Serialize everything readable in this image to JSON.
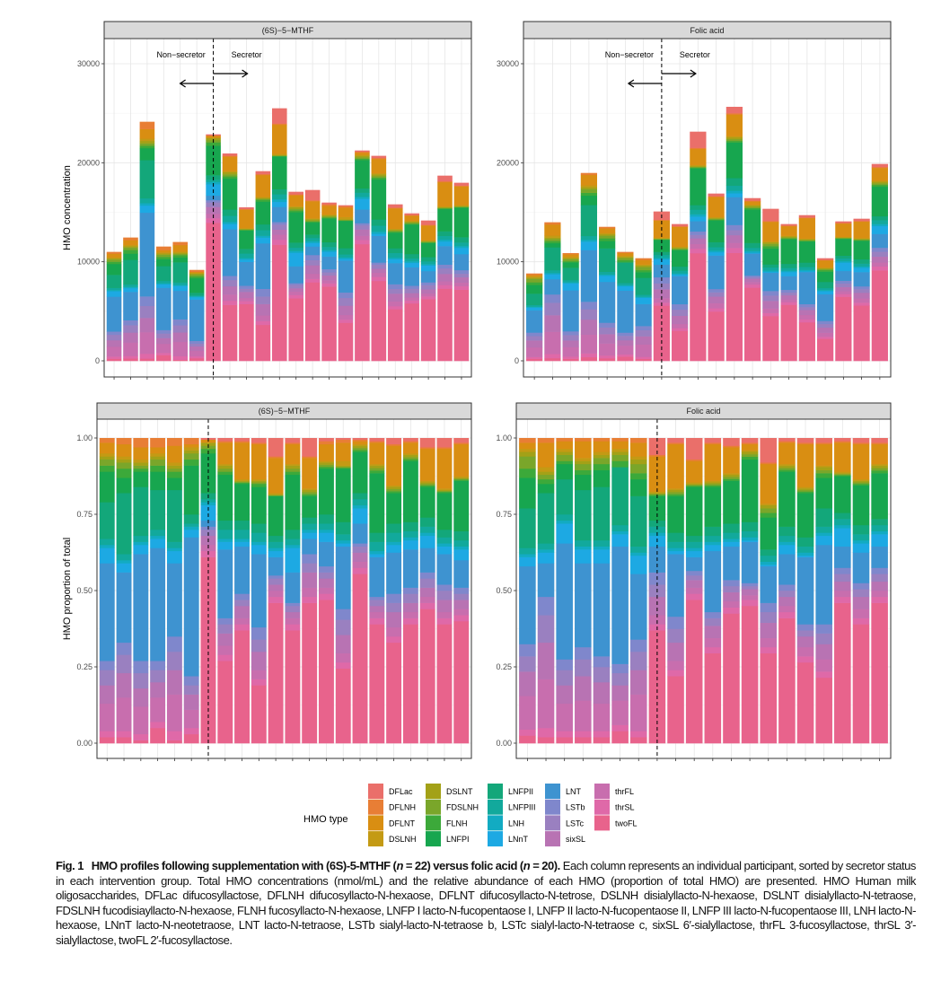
{
  "colors": {
    "DFLac": "#EA6F6A",
    "DFLNH": "#E87E35",
    "DFLNT": "#D98E12",
    "DSLNH": "#C49A14",
    "DSLNT": "#A3A117",
    "FDSLNH": "#7AA62A",
    "FLNH": "#3CA93A",
    "LNFPI": "#17A64F",
    "LNFPII": "#13A77A",
    "LNFPIII": "#12A99C",
    "LNH": "#12ABC2",
    "LNnT": "#1DA9E3",
    "LNT": "#3E93D0",
    "LSTb": "#7F87CC",
    "LSTc": "#9A80C0",
    "sixSL": "#B873B3",
    "thrFL": "#C86EAE",
    "thrSL": "#DF69A8",
    "twoFL": "#E8638C"
  },
  "legend": {
    "title": "HMO type",
    "items": [
      "DFLac",
      "DFLNH",
      "DFLNT",
      "DSLNH",
      "DSLNT",
      "FDSLNH",
      "FLNH",
      "LNFPI",
      "LNFPII",
      "LNFPIII",
      "LNH",
      "LNnT",
      "LNT",
      "LSTb",
      "LSTc",
      "sixSL",
      "thrFL",
      "thrSL",
      "twoFL"
    ]
  },
  "chart_data": [
    {
      "panel": "top-left",
      "type": "bar",
      "stacked": true,
      "facet": "(6S)−5−MTHF",
      "ylabel": "HMO concentration",
      "xlabel": "",
      "ylim": [
        0,
        30000
      ],
      "yticks": [
        "0",
        "10000",
        "20000",
        "30000"
      ],
      "ytick_values": [
        0,
        10000,
        20000,
        30000
      ],
      "grid": true,
      "annotations": {
        "left": "Non−secretor",
        "right": "Secretor"
      },
      "groups": [
        {
          "label": "Non−secretor",
          "count": 6
        },
        {
          "label": "Secretor",
          "count": 16
        }
      ],
      "totals": [
        11000,
        12450,
        24140,
        11540,
        12000,
        9180,
        22870,
        20940,
        15500,
        19150,
        25500,
        17070,
        17250,
        15980,
        15710,
        21240,
        20700,
        15800,
        14890,
        14170,
        18700,
        17980
      ]
    },
    {
      "panel": "top-right",
      "type": "bar",
      "stacked": true,
      "facet": "Folic acid",
      "ylabel": "",
      "xlabel": "",
      "ylim": [
        0,
        30000
      ],
      "yticks": [
        "0",
        "10000",
        "20000",
        "30000"
      ],
      "ytick_values": [
        0,
        10000,
        20000,
        30000
      ],
      "grid": true,
      "annotations": {
        "left": "Non−secretor",
        "right": "Secretor"
      },
      "groups": [
        {
          "label": "Non−secretor",
          "count": 7
        },
        {
          "label": "Secretor",
          "count": 13
        }
      ],
      "totals": [
        8820,
        13990,
        10880,
        18970,
        13530,
        11000,
        10360,
        15080,
        13810,
        23140,
        16890,
        25650,
        16430,
        15350,
        13810,
        14710,
        10360,
        14080,
        14350,
        19880
      ]
    },
    {
      "panel": "bottom-left",
      "type": "bar",
      "stacked": true,
      "facet": "(6S)−5−MTHF",
      "ylabel": "HMO proportion of total",
      "xlabel": "",
      "ylim": [
        0,
        1
      ],
      "yticks": [
        "0.00",
        "0.25",
        "0.50",
        "0.75",
        "1.00"
      ],
      "ytick_values": [
        0,
        0.25,
        0.5,
        0.75,
        1
      ],
      "grid": true,
      "groups": [
        {
          "label": "Non−secretor",
          "count": 6
        },
        {
          "label": "Secretor",
          "count": 16
        }
      ],
      "series_order": [
        "DFLac",
        "DFLNH",
        "DFLNT",
        "DSLNH",
        "DSLNT",
        "FDSLNH",
        "FLNH",
        "LNFPI",
        "LNFPII",
        "LNFPIII",
        "LNH",
        "LNnT",
        "LNT",
        "LSTb",
        "LSTc",
        "sixSL",
        "thrFL",
        "thrSL",
        "twoFL"
      ],
      "proportions": [
        [
          0,
          0.015,
          0.035,
          0.01,
          0.01,
          0.02,
          0.02,
          0.1,
          0.12,
          0.02,
          0.01,
          0.05,
          0.32,
          0.03,
          0.05,
          0.06,
          0.09,
          0.02,
          0.02
        ],
        [
          0,
          0.02,
          0.04,
          0.01,
          0.01,
          0.02,
          0.03,
          0.05,
          0.2,
          0.02,
          0.01,
          0.03,
          0.23,
          0.04,
          0.06,
          0.08,
          0.11,
          0.02,
          0.02
        ],
        [
          0,
          0.03,
          0.04,
          0.01,
          0.01,
          0.01,
          0.01,
          0.05,
          0.16,
          0.02,
          0.01,
          0.03,
          0.35,
          0.04,
          0.05,
          0.06,
          0.09,
          0.02,
          0.01
        ],
        [
          0,
          0.03,
          0.02,
          0.01,
          0.01,
          0.02,
          0.02,
          0.06,
          0.13,
          0.02,
          0.01,
          0.03,
          0.37,
          0.03,
          0.04,
          0.05,
          0.08,
          0.02,
          0.05
        ],
        [
          0,
          0.025,
          0.055,
          0.01,
          0.01,
          0.01,
          0.02,
          0.04,
          0.17,
          0.02,
          0.01,
          0.04,
          0.24,
          0.05,
          0.06,
          0.08,
          0.12,
          0.03,
          0.01
        ],
        [
          0,
          0.02,
          0.01,
          0.01,
          0.01,
          0.02,
          0.02,
          0.16,
          0.03,
          0.01,
          0.01,
          0.025,
          0.455,
          0.03,
          0.03,
          0.05,
          0.06,
          0.02,
          0.03
        ],
        [
          0.005,
          0,
          0.01,
          0,
          0.01,
          0.01,
          0.015,
          0.13,
          0.02,
          0.01,
          0.01,
          0.05,
          0.02,
          0.01,
          0.02,
          0.03,
          0.02,
          0.02,
          0.61
        ],
        [
          0.01,
          0.005,
          0.07,
          0.005,
          0.01,
          0.01,
          0.01,
          0.15,
          0.03,
          0.03,
          0.01,
          0.025,
          0.225,
          0.02,
          0.03,
          0.04,
          0.03,
          0.02,
          0.27
        ],
        [
          0.01,
          0.005,
          0.12,
          0.005,
          0.003,
          0.003,
          0.004,
          0.12,
          0.03,
          0.03,
          0.01,
          0.015,
          0.155,
          0.02,
          0.02,
          0.04,
          0.02,
          0.02,
          0.37
        ],
        [
          0.015,
          0.005,
          0.115,
          0.005,
          0.005,
          0.005,
          0.01,
          0.12,
          0.03,
          0.03,
          0.01,
          0.03,
          0.24,
          0.04,
          0.04,
          0.06,
          0.03,
          0.02,
          0.19
        ],
        [
          0.06,
          0.005,
          0.115,
          0.005,
          0.002,
          0.002,
          0.001,
          0.13,
          0.02,
          0.02,
          0.01,
          0.02,
          0.06,
          0.01,
          0.02,
          0.02,
          0.02,
          0.02,
          0.46
        ],
        [
          0.015,
          0.005,
          0.065,
          0.005,
          0.01,
          0.01,
          0.01,
          0.18,
          0.03,
          0.02,
          0.01,
          0.08,
          0.1,
          0.01,
          0.02,
          0.02,
          0.02,
          0.02,
          0.37
        ],
        [
          0.06,
          0.005,
          0.1,
          0.005,
          0.007,
          0.007,
          0.006,
          0.07,
          0.02,
          0.02,
          0.01,
          0.02,
          0.05,
          0.03,
          0.03,
          0.05,
          0.03,
          0.02,
          0.46
        ],
        [
          0.01,
          0.01,
          0.055,
          0.005,
          0.007,
          0.007,
          0.006,
          0.15,
          0.03,
          0.02,
          0.01,
          0.03,
          0.08,
          0.02,
          0.02,
          0.03,
          0.02,
          0.02,
          0.47
        ],
        [
          0.005,
          0.01,
          0.06,
          0.015,
          0.004,
          0.003,
          0.003,
          0.175,
          0.04,
          0.02,
          0.01,
          0.01,
          0.205,
          0.035,
          0.05,
          0.06,
          0.03,
          0.02,
          0.245
        ],
        [
          0.005,
          0.005,
          0.01,
          0.005,
          0.007,
          0.007,
          0.006,
          0.135,
          0.02,
          0.02,
          0.01,
          0.05,
          0.065,
          0.01,
          0.02,
          0.03,
          0.02,
          0.02,
          0.555
        ],
        [
          0.01,
          0.005,
          0.07,
          0.005,
          0.008,
          0.008,
          0.009,
          0.195,
          0.03,
          0.03,
          0.01,
          0.01,
          0.13,
          0.01,
          0.02,
          0.02,
          0.02,
          0.02,
          0.39
        ],
        [
          0.02,
          0.005,
          0.13,
          0.005,
          0.007,
          0.007,
          0.006,
          0.1,
          0.03,
          0.03,
          0.01,
          0.025,
          0.135,
          0.03,
          0.03,
          0.05,
          0.03,
          0.02,
          0.33
        ],
        [
          0.01,
          0.005,
          0.035,
          0.005,
          0.007,
          0.007,
          0.006,
          0.2,
          0.03,
          0.02,
          0.01,
          0.03,
          0.125,
          0.02,
          0.03,
          0.03,
          0.02,
          0.02,
          0.39
        ],
        [
          0.03,
          0.005,
          0.105,
          0.005,
          0.005,
          0.005,
          0.005,
          0.1,
          0.03,
          0.02,
          0.01,
          0.04,
          0.08,
          0.02,
          0.03,
          0.03,
          0.02,
          0.02,
          0.44
        ],
        [
          0.03,
          0.005,
          0.13,
          0.005,
          0.003,
          0.003,
          0.004,
          0.12,
          0.025,
          0.02,
          0.01,
          0.025,
          0.1,
          0.02,
          0.03,
          0.04,
          0.02,
          0.02,
          0.39
        ],
        [
          0.015,
          0.005,
          0.105,
          0.005,
          0.003,
          0.003,
          0.004,
          0.165,
          0.03,
          0.02,
          0.01,
          0.035,
          0.09,
          0.02,
          0.02,
          0.03,
          0.02,
          0.02,
          0.4
        ]
      ]
    },
    {
      "panel": "bottom-right",
      "type": "bar",
      "stacked": true,
      "facet": "Folic acid",
      "ylabel": "",
      "xlabel": "",
      "ylim": [
        0,
        1
      ],
      "yticks": [
        "0.00",
        "0.25",
        "0.50",
        "0.75",
        "1.00"
      ],
      "ytick_values": [
        0,
        0.25,
        0.5,
        0.75,
        1
      ],
      "grid": true,
      "groups": [
        {
          "label": "Non−secretor",
          "count": 7
        },
        {
          "label": "Secretor",
          "count": 13
        }
      ],
      "series_order": [
        "DFLac",
        "DFLNH",
        "DFLNT",
        "DSLNH",
        "DSLNT",
        "FDSLNH",
        "FLNH",
        "LNFPI",
        "LNFPII",
        "LNFPIII",
        "LNH",
        "LNnT",
        "LNT",
        "LSTb",
        "LSTc",
        "sixSL",
        "thrFL",
        "thrSL",
        "twoFL"
      ],
      "proportions": [
        [
          0,
          0.015,
          0.02,
          0.01,
          0.015,
          0.04,
          0.03,
          0.1,
          0.13,
          0.02,
          0.01,
          0.03,
          0.255,
          0.04,
          0.05,
          0.08,
          0.11,
          0.02,
          0.025
        ],
        [
          0,
          0.015,
          0.08,
          0.015,
          0.01,
          0.015,
          0.015,
          0.03,
          0.165,
          0.02,
          0.01,
          0.035,
          0.11,
          0.06,
          0.09,
          0.12,
          0.16,
          0.03,
          0.02
        ],
        [
          0,
          0.01,
          0.025,
          0.01,
          0.01,
          0.02,
          0.01,
          0.05,
          0.115,
          0.02,
          0.01,
          0.065,
          0.38,
          0.035,
          0.05,
          0.06,
          0.09,
          0.02,
          0.02
        ],
        [
          0,
          0.01,
          0.055,
          0.01,
          0.01,
          0.02,
          0.015,
          0.05,
          0.165,
          0.02,
          0.01,
          0.045,
          0.275,
          0.04,
          0.055,
          0.08,
          0.1,
          0.02,
          0.02
        ],
        [
          0,
          0.01,
          0.035,
          0.01,
          0.01,
          0.02,
          0.02,
          0.055,
          0.175,
          0.02,
          0.01,
          0.045,
          0.305,
          0.035,
          0.05,
          0.07,
          0.09,
          0.02,
          0.02
        ],
        [
          0,
          0.01,
          0.025,
          0.01,
          0.01,
          0.02,
          0.02,
          0,
          0.19,
          0.02,
          0.01,
          0.04,
          0.385,
          0.03,
          0.04,
          0.05,
          0.08,
          0.02,
          0.04
        ],
        [
          0,
          0.015,
          0.045,
          0.01,
          0.015,
          0.03,
          0.02,
          0.055,
          0.165,
          0.02,
          0.01,
          0.06,
          0.215,
          0.04,
          0.06,
          0.08,
          0.12,
          0.02,
          0.02
        ],
        [
          0.055,
          0.005,
          0.115,
          0.005,
          0.003,
          0.003,
          0.004,
          0.08,
          0.02,
          0.02,
          0.01,
          0.035,
          0.085,
          0.04,
          0.04,
          0.06,
          0.03,
          0.02,
          0.37
        ],
        [
          0.015,
          0.005,
          0.145,
          0.005,
          0.007,
          0.007,
          0.006,
          0.12,
          0.03,
          0.02,
          0.01,
          0.01,
          0.205,
          0.04,
          0.045,
          0.06,
          0.03,
          0.02,
          0.22
        ],
        [
          0.07,
          0.005,
          0.07,
          0.005,
          0.003,
          0.003,
          0.004,
          0.16,
          0.02,
          0.02,
          0.01,
          0.02,
          0.045,
          0.015,
          0.015,
          0.025,
          0.02,
          0.02,
          0.47
        ],
        [
          0.015,
          0.005,
          0.12,
          0.005,
          0.005,
          0.005,
          0.005,
          0.13,
          0.03,
          0.02,
          0.01,
          0.02,
          0.2,
          0.02,
          0.025,
          0.04,
          0.03,
          0.02,
          0.295
        ],
        [
          0.025,
          0.005,
          0.085,
          0.005,
          0.007,
          0.007,
          0.006,
          0.14,
          0.03,
          0.02,
          0.01,
          0.015,
          0.11,
          0.02,
          0.02,
          0.03,
          0.02,
          0.02,
          0.425
        ],
        [
          0.015,
          0.005,
          0.02,
          0.005,
          0.008,
          0.008,
          0.009,
          0.205,
          0.03,
          0.02,
          0.01,
          0.005,
          0.135,
          0.01,
          0.01,
          0.02,
          0.015,
          0.02,
          0.45
        ],
        [
          0.08,
          0.005,
          0.13,
          0.005,
          0.01,
          0.015,
          0.015,
          0.105,
          0.02,
          0.02,
          0.01,
          0.005,
          0.12,
          0.03,
          0.035,
          0.05,
          0.03,
          0.02,
          0.295
        ],
        [
          0.01,
          0.005,
          0.07,
          0.005,
          0.007,
          0.007,
          0.006,
          0.18,
          0.03,
          0.02,
          0.01,
          0.03,
          0.1,
          0.02,
          0.02,
          0.03,
          0.02,
          0.02,
          0.41
        ],
        [
          0.015,
          0.005,
          0.14,
          0.005,
          0.005,
          0.005,
          0.005,
          0.145,
          0.03,
          0.02,
          0.01,
          0.005,
          0.22,
          0.02,
          0.02,
          0.035,
          0.03,
          0.02,
          0.265
        ],
        [
          0.015,
          0.005,
          0.07,
          0.005,
          0.01,
          0.01,
          0.015,
          0.1,
          0.06,
          0.02,
          0.01,
          0.03,
          0.26,
          0.03,
          0.035,
          0.05,
          0.04,
          0.02,
          0.215
        ],
        [
          0.01,
          0.005,
          0.095,
          0.005,
          0.003,
          0.003,
          0.004,
          0.12,
          0.02,
          0.02,
          0.01,
          0.06,
          0.07,
          0.02,
          0.025,
          0.03,
          0.02,
          0.02,
          0.46
        ],
        [
          0.015,
          0.005,
          0.115,
          0.005,
          0.005,
          0.005,
          0.005,
          0.13,
          0.03,
          0.02,
          0.01,
          0.03,
          0.1,
          0.02,
          0.025,
          0.04,
          0.03,
          0.02,
          0.39
        ],
        [
          0.015,
          0.005,
          0.065,
          0.005,
          0.008,
          0.008,
          0.009,
          0.15,
          0.02,
          0.02,
          0.01,
          0.04,
          0.07,
          0.02,
          0.025,
          0.03,
          0.02,
          0.02,
          0.46
        ]
      ]
    }
  ],
  "caption": {
    "label": "Fig. 1",
    "title_a": "HMO profiles following supplementation with (6S)-5-MTHF (",
    "n_symbol": "n",
    "title_b": " = 22) versus folic acid (",
    "title_c": " = 20).",
    "body": "Each column represents an individual participant, sorted by secretor status in each intervention group. Total HMO concentrations (nmol/mL) and the relative abundance of each HMO (proportion of total HMO) are presented. HMO Human milk oligosaccharides, DFLac difucosyllactose, DFLNH difucosyllacto-N-hexaose, DFLNT difucosyllacto-N-tetrose, DSLNH disialyllacto-N-hexaose, DSLNT disialyllacto-N-tetraose, FDSLNH fucodisiayllacto-N-hexaose, FLNH fucosyllacto-N-hexaose, LNFP I lacto-N-fucopentaose I, LNFP II lacto-N-fucopentaose II, LNFP III lacto-N-fucopentaose III, LNH lacto-N-hexaose, LNnT lacto-N-neotetraose, LNT lacto-N-tetraose, LSTb sialyl-lacto-N-tetraose b, LSTc sialyl-lacto-N-tetraose c, sixSL 6′-sialyllactose, thrFL 3-fucosyllactose, thrSL 3′-sialyllactose, twoFL 2′-fucosyllactose."
  }
}
